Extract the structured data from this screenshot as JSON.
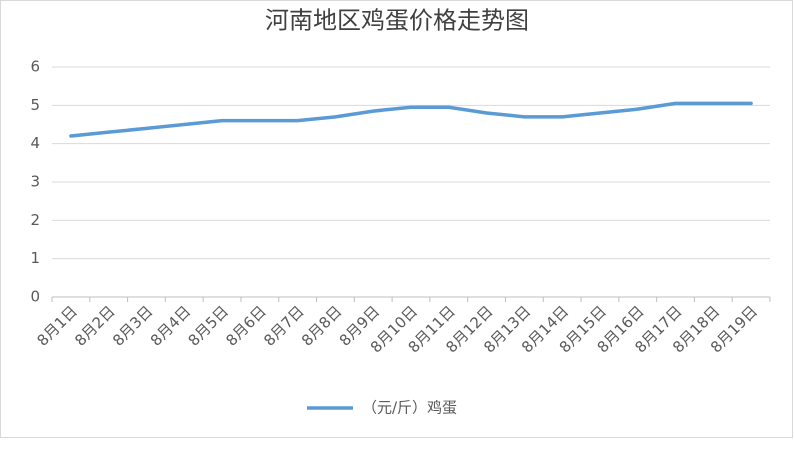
{
  "chart_data": {
    "type": "line",
    "title": "河南地区鸡蛋价格走势图",
    "categories": [
      "8月1日",
      "8月2日",
      "8月3日",
      "8月4日",
      "8月5日",
      "8月6日",
      "8月7日",
      "8月8日",
      "8月9日",
      "8月10日",
      "8月11日",
      "8月12日",
      "8月13日",
      "8月14日",
      "8月15日",
      "8月16日",
      "8月17日",
      "8月18日",
      "8月19日"
    ],
    "series": [
      {
        "name": "（元/斤）鸡蛋",
        "color": "#5b9bd5",
        "values": [
          4.2,
          4.3,
          4.4,
          4.5,
          4.6,
          4.6,
          4.6,
          4.7,
          4.85,
          4.95,
          4.95,
          4.8,
          4.7,
          4.7,
          4.8,
          4.9,
          5.05,
          5.05,
          5.05
        ]
      }
    ],
    "ylim": [
      0,
      6
    ],
    "yticks": [
      0,
      1,
      2,
      3,
      4,
      5,
      6
    ],
    "grid": true,
    "legend": "bottom"
  }
}
